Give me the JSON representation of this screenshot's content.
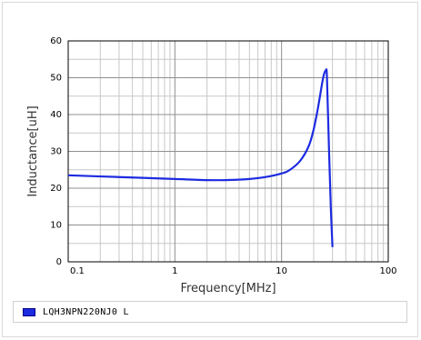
{
  "chart_data": {
    "type": "line",
    "xlabel": "Frequency[MHz]",
    "ylabel": "Inductance[uH]",
    "x_scale": "log",
    "xlim": [
      0.1,
      100
    ],
    "ylim": [
      0,
      60
    ],
    "x_ticks": [
      "0.1",
      "1",
      "10",
      "100"
    ],
    "y_ticks": [
      "0",
      "10",
      "20",
      "30",
      "40",
      "50",
      "60"
    ],
    "grid": true,
    "legend_position": "bottom",
    "series": [
      {
        "name": "LQH3NPN220NJ0  L",
        "color": "#1d2be0",
        "x": [
          0.1,
          0.2,
          0.5,
          1,
          2,
          3,
          5,
          7,
          10,
          12,
          15,
          18,
          20,
          22,
          24,
          25,
          26,
          26.5,
          27,
          28,
          29,
          30
        ],
        "y": [
          23.5,
          23.2,
          22.8,
          22.5,
          22.2,
          22.2,
          22.5,
          23.0,
          24.0,
          25.0,
          27.5,
          31.5,
          36.0,
          42.0,
          48.5,
          51.0,
          52.0,
          51.5,
          44.0,
          28.0,
          14.0,
          4.0
        ]
      }
    ]
  }
}
